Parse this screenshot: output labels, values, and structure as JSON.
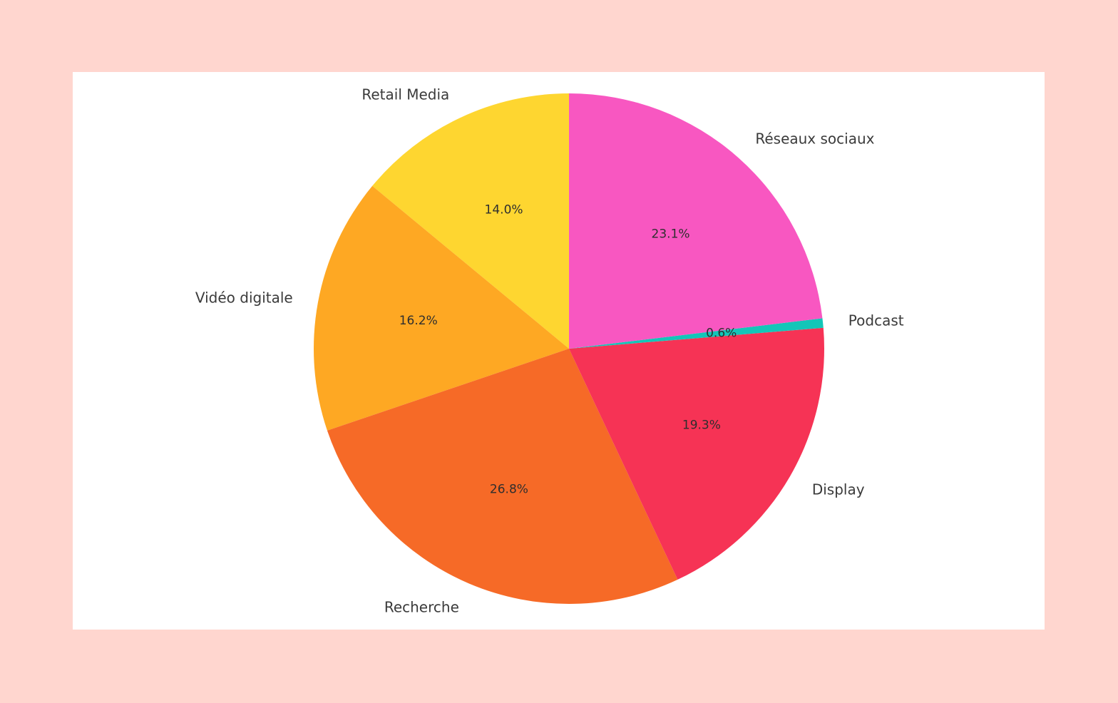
{
  "chart_data": {
    "type": "pie",
    "start_angle_deg": 90,
    "direction": "counterclockwise",
    "labels": [
      "Retail Media",
      "Vidéo digitale",
      "Recherche",
      "Display",
      "Podcast",
      "Réseaux sociaux"
    ],
    "values": [
      14.0,
      16.2,
      26.8,
      19.3,
      0.6,
      23.1
    ],
    "pct_labels": [
      "14.0%",
      "16.2%",
      "26.8%",
      "19.3%",
      "0.6%",
      "23.1%"
    ],
    "colors": [
      "#fed630",
      "#fea823",
      "#f66a27",
      "#f63355",
      "#13c6b8",
      "#f857c1"
    ],
    "legend": "none"
  },
  "colors": {
    "background": "#ffd6cf",
    "panel": "#ffffff"
  }
}
